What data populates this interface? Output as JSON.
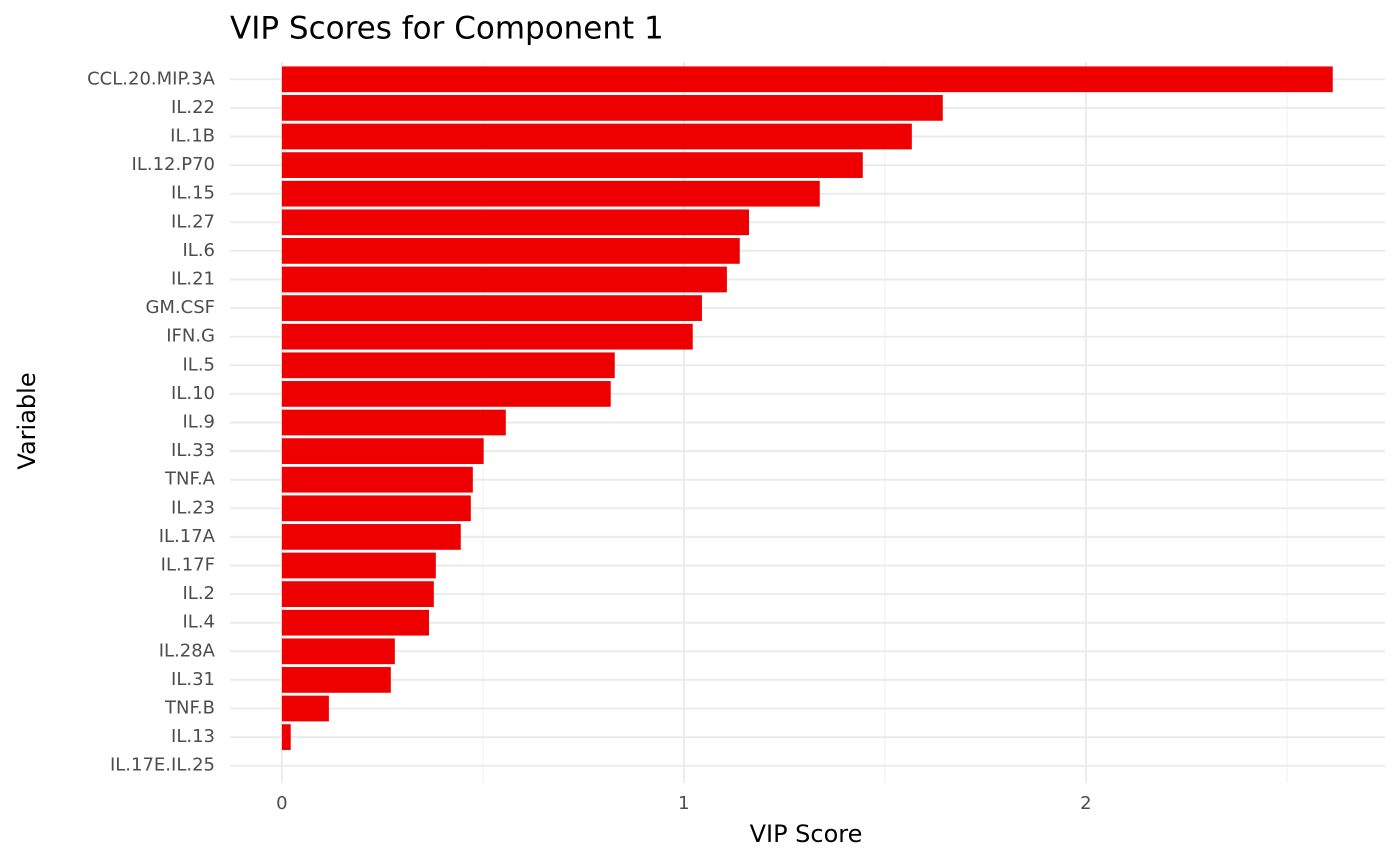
{
  "chart_data": {
    "type": "hbar",
    "title": "VIP Scores for Component 1",
    "x_label": "VIP Score",
    "y_label": "Variable",
    "categories": [
      "CCL.20.MIP.3A",
      "IL.22",
      "IL.1B",
      "IL.12.P70",
      "IL.15",
      "IL.27",
      "IL.6",
      "IL.21",
      "GM.CSF",
      "IFN.G",
      "IL.5",
      "IL.10",
      "IL.9",
      "IL.33",
      "TNF.A",
      "IL.23",
      "IL.17A",
      "IL.17F",
      "IL.2",
      "IL.4",
      "IL.28A",
      "IL.31",
      "TNF.B",
      "IL.13",
      "IL.17E.IL.25"
    ],
    "values": [
      2.614,
      1.644,
      1.567,
      1.445,
      1.338,
      1.162,
      1.139,
      1.107,
      1.045,
      1.022,
      0.828,
      0.818,
      0.557,
      0.502,
      0.475,
      0.47,
      0.445,
      0.383,
      0.378,
      0.366,
      0.281,
      0.271,
      0.117,
      0.022,
      0
    ],
    "color": "#ee0000",
    "xlim": [
      -0.129,
      2.744
    ],
    "xticks": [
      0,
      1,
      2
    ],
    "x_minor_ticks": [
      0.5,
      1.5,
      2.5
    ],
    "grid": true
  }
}
